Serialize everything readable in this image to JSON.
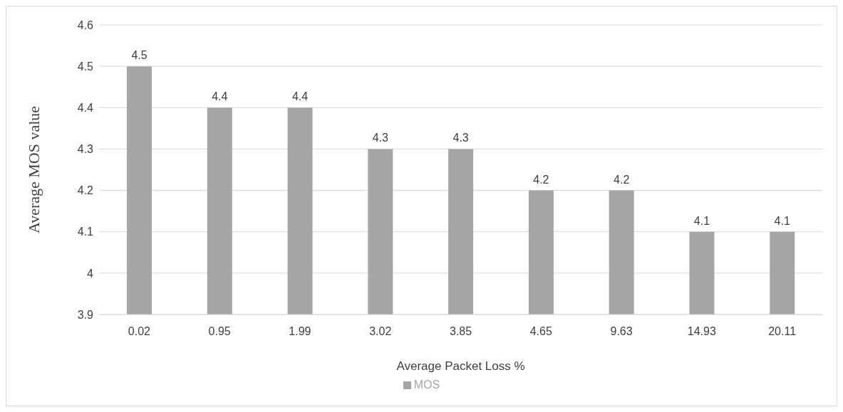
{
  "chart_data": {
    "type": "bar",
    "xlabel": "Average Packet Loss %",
    "ylabel": "Average MOS value",
    "categories": [
      "0.02",
      "0.95",
      "1.99",
      "3.02",
      "3.85",
      "4.65",
      "9.63",
      "14.93",
      "20.11"
    ],
    "series": [
      {
        "name": "MOS",
        "color": "#a5a5a5",
        "values": [
          4.5,
          4.4,
          4.4,
          4.3,
          4.3,
          4.2,
          4.2,
          4.1,
          4.1
        ]
      }
    ],
    "ylim": [
      3.9,
      4.6
    ],
    "yticks": [
      3.9,
      4,
      4.1,
      4.2,
      4.3,
      4.4,
      4.5,
      4.6
    ],
    "grid": "y",
    "legend": "bottom",
    "data_labels": true
  }
}
